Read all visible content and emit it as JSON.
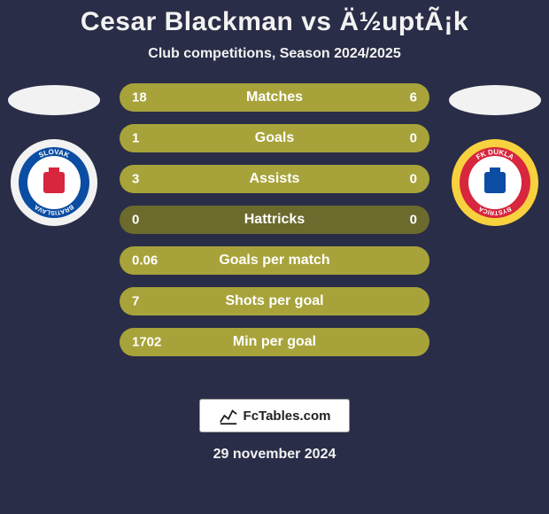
{
  "title": "Cesar Blackman vs Ä½uptÃ¡k",
  "subtitle": "Club competitions, Season 2024/2025",
  "title_fontsize": 30,
  "title_color": "#f2f2f2",
  "subtitle_fontsize": 16,
  "subtitle_color": "#f2f2f2",
  "background_color": "#2a2d47",
  "player_left": {
    "shadow_color": "#f2f2f2",
    "crest_ring_color": "#f2f2f2",
    "crest_bg": "#0b4da2",
    "crest_accent": "#d7263d",
    "crest_text_top": "SLOVAK",
    "crest_text_bottom": "BRATISLAVA"
  },
  "player_right": {
    "shadow_color": "#f2f2f2",
    "crest_ring_color": "#f7d23e",
    "crest_bg": "#d7263d",
    "crest_accent": "#0b4da2",
    "crest_text_top": "FK DUKLA",
    "crest_text_bottom": "BYSTRICA"
  },
  "bar_style": {
    "height": 32,
    "gap": 14,
    "radius": 16,
    "track_color": "#6c6a2d",
    "left_fill_color": "#a7a33a",
    "right_fill_color": "#a7a33a",
    "label_fontsize": 16,
    "value_fontsize": 15,
    "text_color": "#ffffff"
  },
  "bars": [
    {
      "label": "Matches",
      "left": "18",
      "right": "6",
      "left_pct": 75,
      "right_pct": 25
    },
    {
      "label": "Goals",
      "left": "1",
      "right": "0",
      "left_pct": 100,
      "right_pct": 0
    },
    {
      "label": "Assists",
      "left": "3",
      "right": "0",
      "left_pct": 100,
      "right_pct": 0
    },
    {
      "label": "Hattricks",
      "left": "0",
      "right": "0",
      "left_pct": 0,
      "right_pct": 0
    },
    {
      "label": "Goals per match",
      "left": "0.06",
      "right": "",
      "left_pct": 100,
      "right_pct": 0
    },
    {
      "label": "Shots per goal",
      "left": "7",
      "right": "",
      "left_pct": 100,
      "right_pct": 0
    },
    {
      "label": "Min per goal",
      "left": "1702",
      "right": "",
      "left_pct": 100,
      "right_pct": 0
    }
  ],
  "badge": {
    "text": "FcTables.com",
    "bg": "#ffffff",
    "border": "#999999",
    "text_color": "#222222",
    "fontsize": 15
  },
  "date": {
    "text": "29 november 2024",
    "fontsize": 16,
    "color": "#f2f2f2"
  }
}
